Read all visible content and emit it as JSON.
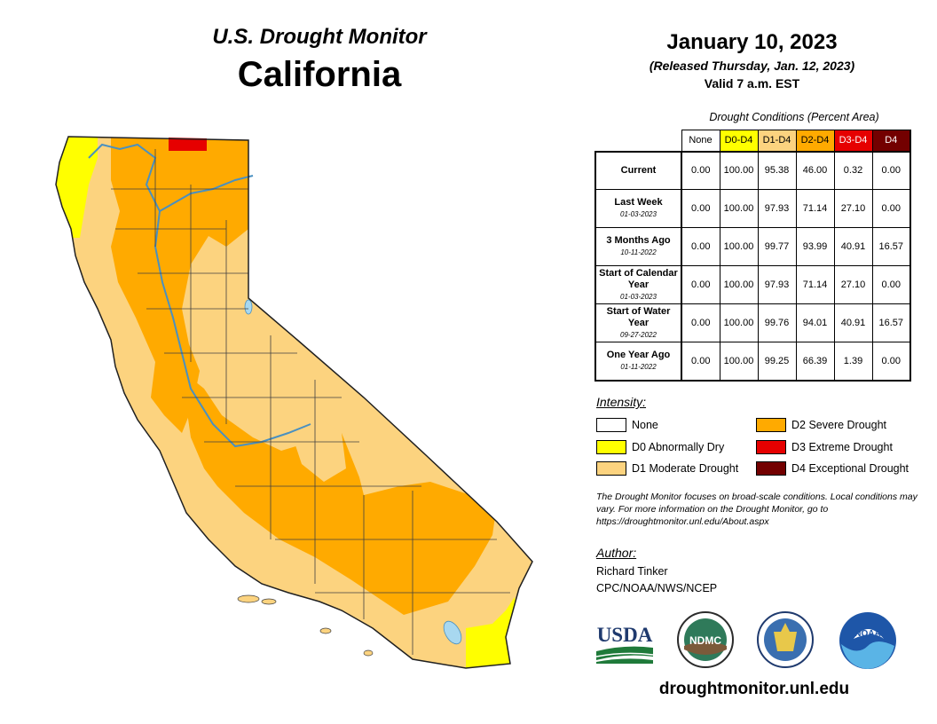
{
  "header": {
    "subtitle": "U.S. Drought Monitor",
    "state": "California",
    "date": "January 10, 2023",
    "released": "(Released Thursday, Jan. 12, 2023)",
    "valid": "Valid 7 a.m. EST"
  },
  "table": {
    "caption": "Drought Conditions (Percent Area)",
    "columns": [
      {
        "label": "None",
        "color": "#ffffff",
        "text": "#000000"
      },
      {
        "label": "D0-D4",
        "color": "#ffff00",
        "text": "#000000"
      },
      {
        "label": "D1-D4",
        "color": "#fcd37f",
        "text": "#000000"
      },
      {
        "label": "D2-D4",
        "color": "#ffaa00",
        "text": "#000000"
      },
      {
        "label": "D3-D4",
        "color": "#e60000",
        "text": "#ffffff"
      },
      {
        "label": "D4",
        "color": "#730000",
        "text": "#ffffff"
      }
    ],
    "rows": [
      {
        "label": "Current",
        "date": "",
        "values": [
          "0.00",
          "100.00",
          "95.38",
          "46.00",
          "0.32",
          "0.00"
        ]
      },
      {
        "label": "Last Week",
        "date": "01-03-2023",
        "values": [
          "0.00",
          "100.00",
          "97.93",
          "71.14",
          "27.10",
          "0.00"
        ]
      },
      {
        "label": "3 Months Ago",
        "date": "10-11-2022",
        "values": [
          "0.00",
          "100.00",
          "99.77",
          "93.99",
          "40.91",
          "16.57"
        ]
      },
      {
        "label": "Start of Calendar Year",
        "date": "01-03-2023",
        "values": [
          "0.00",
          "100.00",
          "97.93",
          "71.14",
          "27.10",
          "0.00"
        ]
      },
      {
        "label": "Start of Water Year",
        "date": "09-27-2022",
        "values": [
          "0.00",
          "100.00",
          "99.76",
          "94.01",
          "40.91",
          "16.57"
        ]
      },
      {
        "label": "One Year Ago",
        "date": "01-11-2022",
        "values": [
          "0.00",
          "100.00",
          "99.25",
          "66.39",
          "1.39",
          "0.00"
        ]
      }
    ]
  },
  "legend": {
    "title": "Intensity:",
    "items": [
      {
        "label": "None",
        "color": "#ffffff"
      },
      {
        "label": "D0 Abnormally Dry",
        "color": "#ffff00"
      },
      {
        "label": "D1 Moderate Drought",
        "color": "#fcd37f"
      },
      {
        "label": "D2 Severe Drought",
        "color": "#ffaa00"
      },
      {
        "label": "D3 Extreme Drought",
        "color": "#e60000"
      },
      {
        "label": "D4 Exceptional Drought",
        "color": "#730000"
      }
    ]
  },
  "note": "The Drought Monitor focuses on broad-scale conditions. Local conditions may vary. For more information on the Drought Monitor, go to https://droughtmonitor.unl.edu/About.aspx",
  "author": {
    "label": "Author:",
    "name": "Richard Tinker",
    "org": "CPC/NOAA/NWS/NCEP"
  },
  "logos": {
    "usda": "USDA",
    "ndmc": "NDMC",
    "noaa": "NOAA"
  },
  "website": "droughtmonitor.unl.edu",
  "map_colors": {
    "D0": "#ffff00",
    "D1": "#fcd37f",
    "D2": "#ffaa00",
    "D3": "#e60000",
    "water": "#a8d8f0",
    "border": "#404040"
  }
}
